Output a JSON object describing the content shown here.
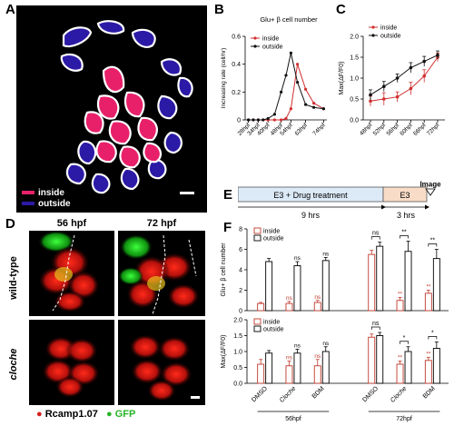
{
  "panels": {
    "A": {
      "label": "A",
      "legend": [
        {
          "name": "inside",
          "color": "#e8206a"
        },
        {
          "name": "outside",
          "color": "#2b1aa6"
        }
      ]
    },
    "B": {
      "label": "B"
    },
    "C": {
      "label": "C"
    },
    "D": {
      "label": "D",
      "col_headers": [
        "56 hpf",
        "72 hpf"
      ],
      "row_headers": [
        "wild-type",
        "cloche"
      ],
      "legend": [
        {
          "bullet": "●",
          "name": "Rcamp1.07",
          "color": "#d81e1e"
        },
        {
          "bullet": "●",
          "name": "GFP",
          "color": "#27b327"
        }
      ]
    },
    "E": {
      "label": "E",
      "image_label": "Image",
      "boxes": [
        {
          "label": "E3 + Drug treatment",
          "color": "#dce9f6"
        },
        {
          "label": "E3",
          "color": "#f8dcc7"
        }
      ],
      "durations": [
        "9 hrs",
        "3 hrs"
      ]
    },
    "F": {
      "label": "F"
    }
  },
  "chart_data": [
    {
      "id": "B",
      "type": "line",
      "title": "Glu+ β cell number",
      "ylabel": "Increasing rate (cell/hr)",
      "xlabel": "",
      "categories": [
        "28hpf",
        "34hpf",
        "40hpf",
        "48hpf",
        "54hpf",
        "63hpf",
        "74hpf"
      ],
      "x": [
        28,
        31,
        34,
        37,
        40,
        44,
        48,
        51,
        54,
        58,
        63,
        68,
        74
      ],
      "xlim": [
        26,
        76
      ],
      "ylim": [
        0,
        0.6
      ],
      "yticks": [
        0,
        0.2,
        0.4,
        0.6
      ],
      "legend": "top-left",
      "series": [
        {
          "name": "inside",
          "color": "#d03030",
          "values": [
            0,
            0,
            0,
            0,
            0,
            0,
            0,
            0.01,
            0.08,
            0.4,
            0.22,
            0.12,
            0.08
          ]
        },
        {
          "name": "outside",
          "color": "#111111",
          "values": [
            0,
            0,
            0,
            0,
            0.01,
            0.04,
            0.2,
            0.32,
            0.48,
            0.27,
            0.11,
            0.09,
            0.08
          ]
        }
      ]
    },
    {
      "id": "C",
      "type": "line",
      "ylabel": "Max(ΔF/F0)",
      "xlabel": "",
      "categories": [
        "48hpf",
        "52hpf",
        "56hpf",
        "60hpf",
        "66hpf",
        "72hpf"
      ],
      "ylim": [
        0,
        2.0
      ],
      "yticks": [
        0,
        0.5,
        1.0,
        1.5,
        2.0
      ],
      "legend": "top-left",
      "series": [
        {
          "name": "inside",
          "color": "#d03030",
          "values": [
            0.45,
            0.5,
            0.55,
            0.75,
            1.05,
            1.5
          ],
          "err": [
            0.12,
            0.15,
            0.12,
            0.15,
            0.15,
            0.1
          ]
        },
        {
          "name": "outside",
          "color": "#111111",
          "values": [
            0.6,
            0.8,
            1.0,
            1.25,
            1.4,
            1.55
          ],
          "err": [
            0.12,
            0.12,
            0.1,
            0.12,
            0.12,
            0.1
          ]
        }
      ]
    },
    {
      "id": "F-top",
      "type": "bar",
      "ylabel": "Glu+ β cell number",
      "ylim": [
        0,
        8
      ],
      "yticks": [
        0,
        2,
        4,
        6,
        8
      ],
      "categories": [
        "DMSO",
        "Cloche",
        "BDM",
        "DMSO",
        "Cloche",
        "BDM"
      ],
      "group_labels": [
        "56hpf",
        "72hpf"
      ],
      "legend": "top-left",
      "series": [
        {
          "name": "inside",
          "color": "#c0392b",
          "values": [
            0.7,
            0.7,
            0.8,
            5.5,
            1.0,
            1.7
          ],
          "err": [
            0.1,
            0.2,
            0.2,
            0.4,
            0.3,
            0.3
          ]
        },
        {
          "name": "outside",
          "color": "#000000",
          "values": [
            4.8,
            4.4,
            4.9,
            6.3,
            5.8,
            5.1
          ],
          "err": [
            0.3,
            0.4,
            0.3,
            0.4,
            1.0,
            0.9
          ]
        }
      ],
      "annotations": {
        "above_bar": [
          {
            "index": 1,
            "series": "inside",
            "text": "ns"
          },
          {
            "index": 1,
            "series": "outside",
            "text": "ns"
          },
          {
            "index": 2,
            "series": "inside",
            "text": "ns"
          },
          {
            "index": 2,
            "series": "outside",
            "text": "ns"
          },
          {
            "index": 4,
            "series": "inside",
            "text": "**"
          },
          {
            "index": 5,
            "series": "inside",
            "text": "**"
          }
        ],
        "brackets": [
          {
            "index": 3,
            "text": "ns"
          },
          {
            "index": 4,
            "text": "**"
          },
          {
            "index": 5,
            "text": "**"
          }
        ]
      }
    },
    {
      "id": "F-bottom",
      "type": "bar",
      "ylabel": "Max(ΔF/F0)",
      "ylim": [
        0,
        2.0
      ],
      "yticks": [
        0,
        0.5,
        1.0,
        1.5,
        2.0
      ],
      "categories": [
        "DMSO",
        "Cloche",
        "BDM",
        "DMSO",
        "Cloche",
        "BDM"
      ],
      "group_labels": [
        "56hpf",
        "72hpf"
      ],
      "legend": "top-left",
      "series": [
        {
          "name": "inside",
          "color": "#c0392b",
          "values": [
            0.6,
            0.55,
            0.55,
            1.45,
            0.6,
            0.72
          ],
          "err": [
            0.15,
            0.15,
            0.2,
            0.1,
            0.1,
            0.1
          ]
        },
        {
          "name": "outside",
          "color": "#000000",
          "values": [
            0.95,
            0.95,
            1.0,
            1.5,
            1.0,
            1.1
          ],
          "err": [
            0.08,
            0.12,
            0.15,
            0.1,
            0.15,
            0.2
          ]
        }
      ],
      "annotations": {
        "above_bar": [
          {
            "index": 1,
            "series": "inside",
            "text": "ns"
          },
          {
            "index": 1,
            "series": "outside",
            "text": "ns"
          },
          {
            "index": 2,
            "series": "inside",
            "text": "ns"
          },
          {
            "index": 2,
            "series": "outside",
            "text": "ns"
          },
          {
            "index": 4,
            "series": "inside",
            "text": "**"
          },
          {
            "index": 5,
            "series": "inside",
            "text": "**"
          }
        ],
        "brackets": [
          {
            "index": 3,
            "text": "ns"
          },
          {
            "index": 4,
            "text": "*"
          },
          {
            "index": 5,
            "text": "*"
          }
        ]
      }
    }
  ]
}
